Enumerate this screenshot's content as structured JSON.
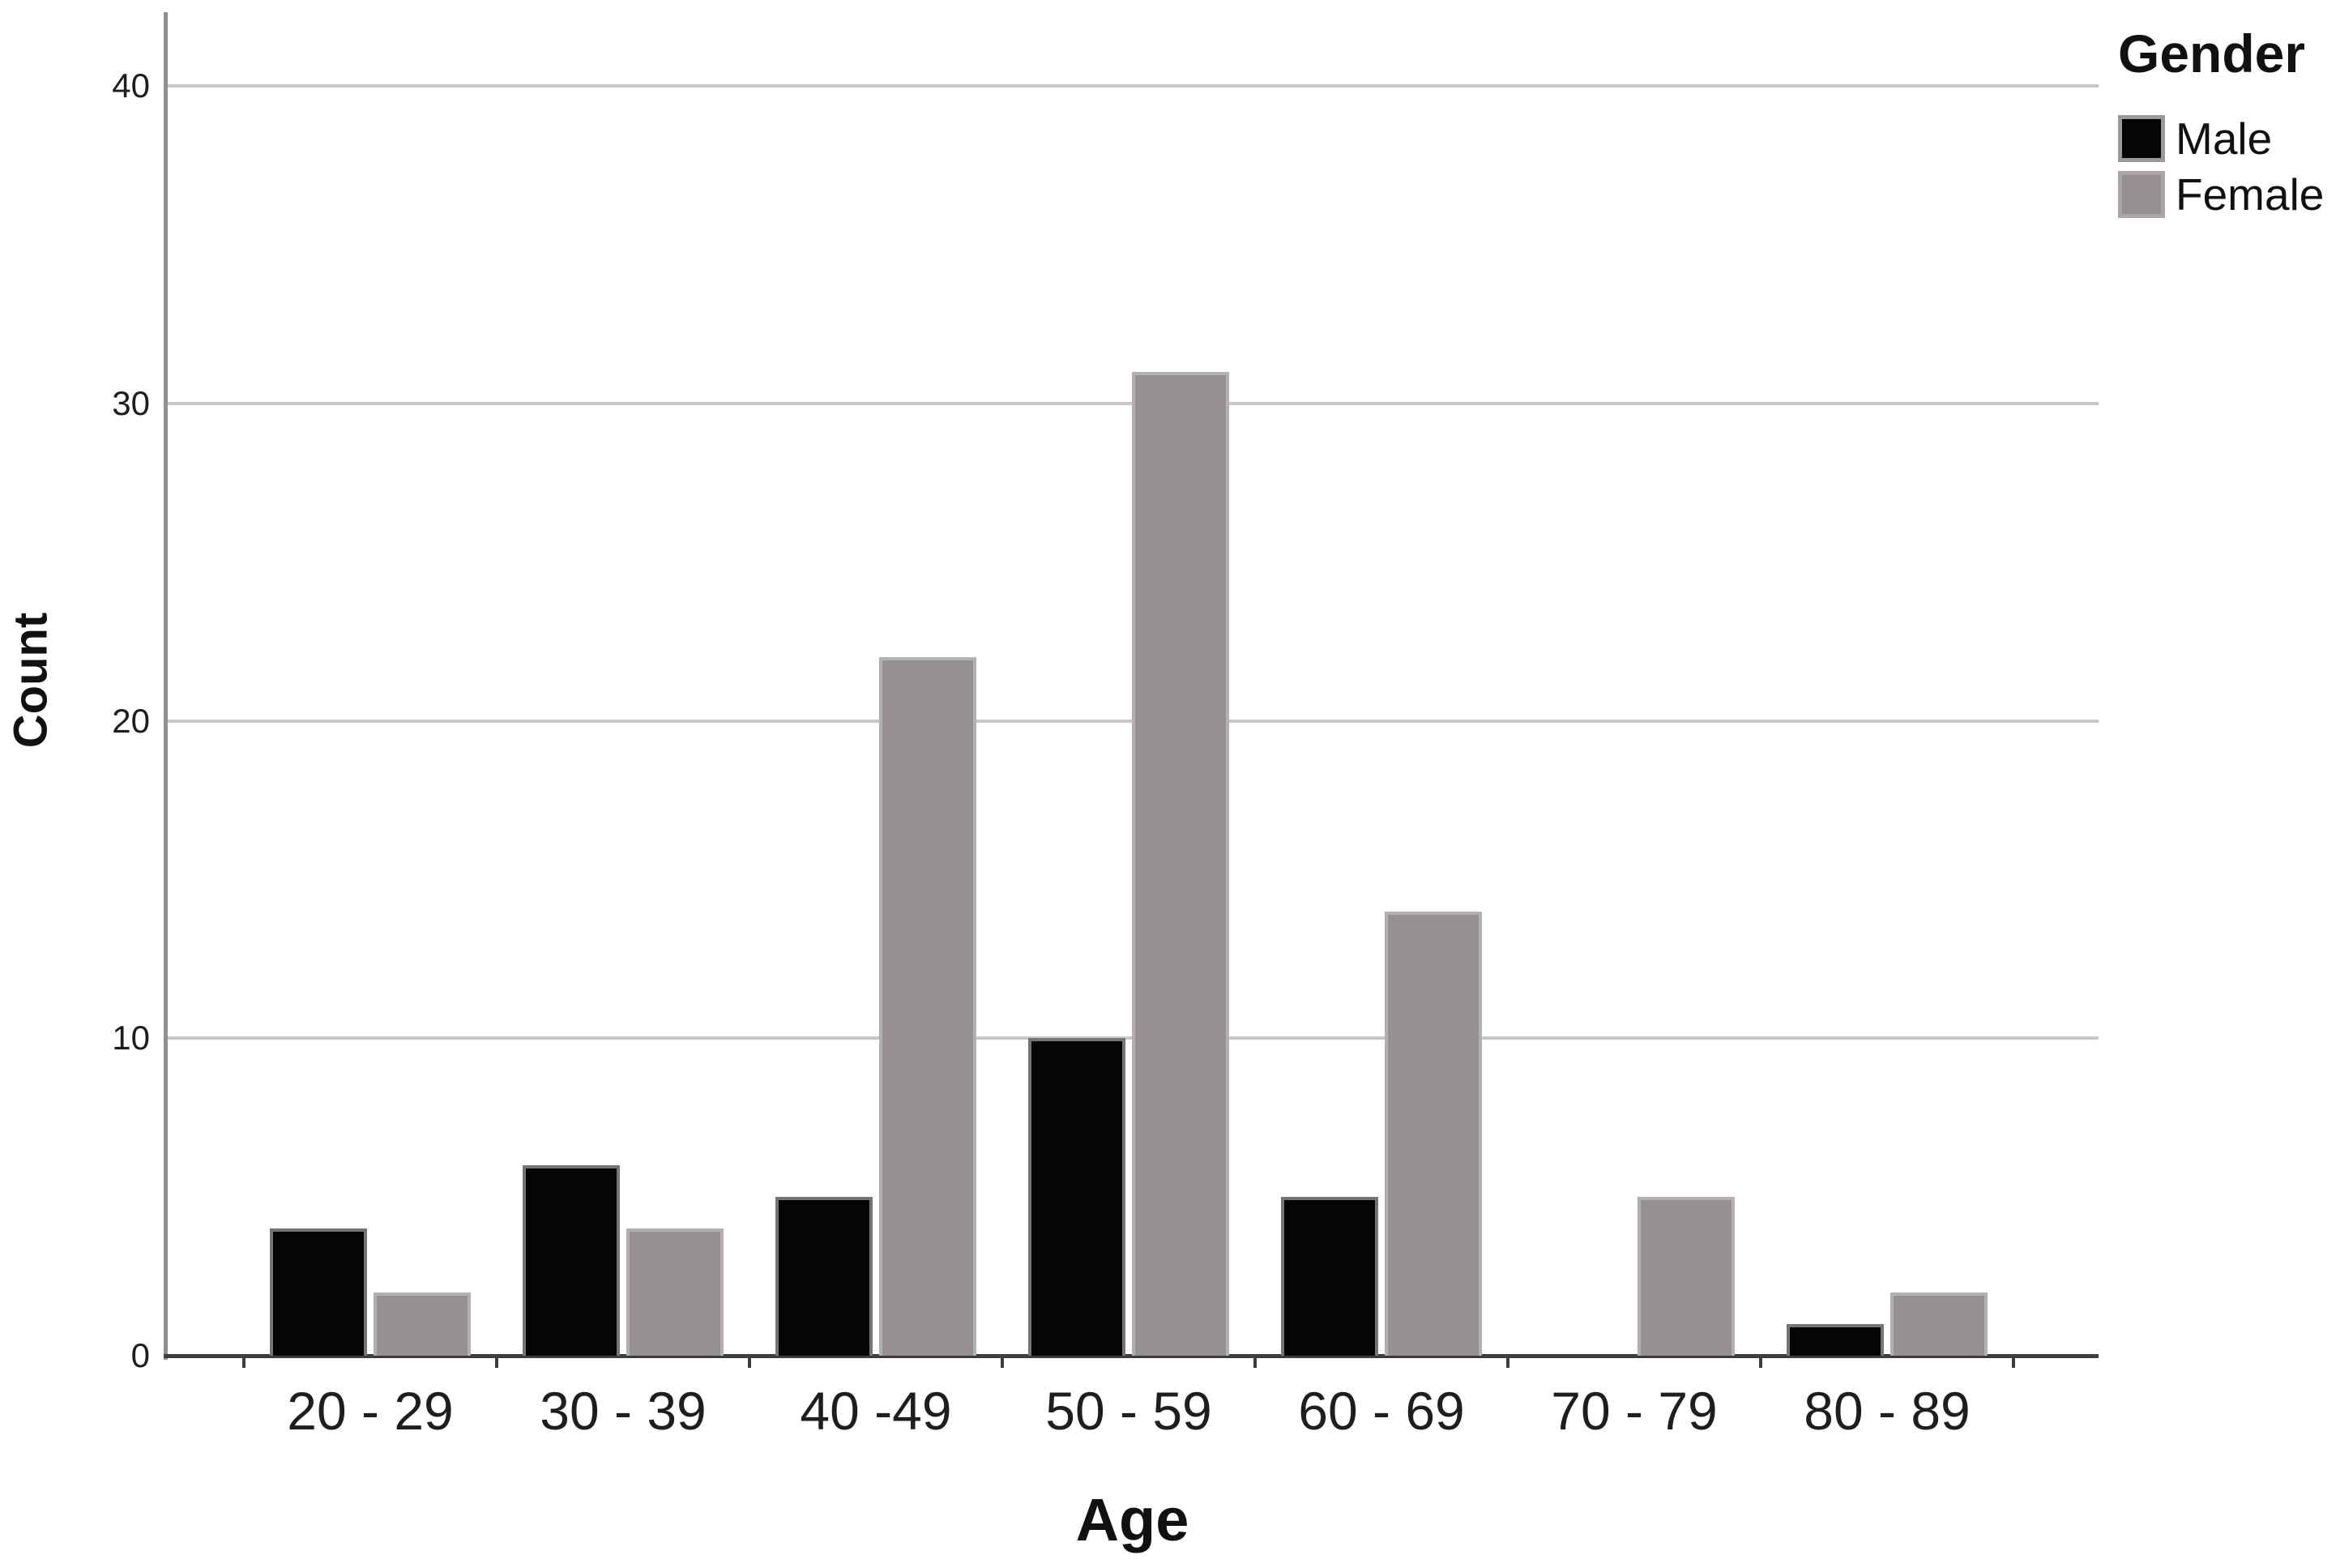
{
  "chart_data": {
    "type": "bar",
    "categories": [
      "20 - 29",
      "30 - 39",
      "40 -49",
      "50 - 59",
      "60 - 69",
      "70 - 79",
      "80 - 89"
    ],
    "series": [
      {
        "name": "Male",
        "values": [
          4,
          6,
          5,
          10,
          5,
          0,
          1
        ],
        "fill": "#050505",
        "border": "#757575"
      },
      {
        "name": "Female",
        "values": [
          2,
          4,
          22,
          31,
          14,
          5,
          2
        ],
        "fill": "#969190",
        "border": "#b3b0af"
      }
    ],
    "title": "",
    "xlabel": "Age",
    "ylabel": "Count",
    "ylim": [
      0,
      42
    ],
    "yticks": [
      0,
      10,
      20,
      30,
      40
    ],
    "grid": true,
    "legend": {
      "title": "Gender",
      "position": "top-right",
      "entries": [
        "Male",
        "Female"
      ]
    },
    "colors": {
      "gridline": "#c7c7c9",
      "y_axis": "#919191",
      "x_axis": "#3d3d3d",
      "text": "#1e1e1e"
    }
  }
}
